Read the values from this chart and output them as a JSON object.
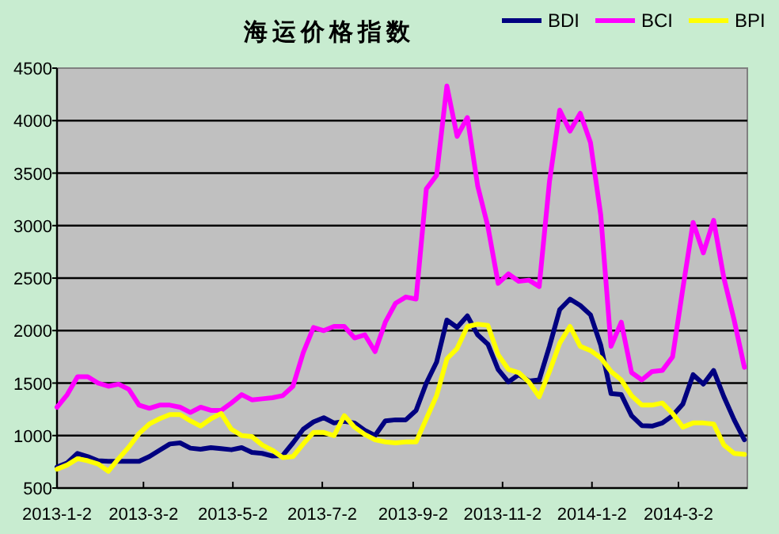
{
  "chart_data": {
    "type": "line",
    "title": "海运价格指数",
    "x": [
      "2013-01-02",
      "2013-01-09",
      "2013-01-16",
      "2013-01-23",
      "2013-01-30",
      "2013-02-06",
      "2013-02-13",
      "2013-02-20",
      "2013-02-27",
      "2013-03-06",
      "2013-03-13",
      "2013-03-20",
      "2013-03-27",
      "2013-04-03",
      "2013-04-10",
      "2013-04-17",
      "2013-04-24",
      "2013-05-01",
      "2013-05-08",
      "2013-05-15",
      "2013-05-22",
      "2013-05-29",
      "2013-06-05",
      "2013-06-12",
      "2013-06-19",
      "2013-06-26",
      "2013-07-03",
      "2013-07-10",
      "2013-07-17",
      "2013-07-24",
      "2013-07-31",
      "2013-08-07",
      "2013-08-14",
      "2013-08-21",
      "2013-08-28",
      "2013-09-04",
      "2013-09-11",
      "2013-09-18",
      "2013-09-25",
      "2013-10-02",
      "2013-10-09",
      "2013-10-16",
      "2013-10-23",
      "2013-10-30",
      "2013-11-06",
      "2013-11-13",
      "2013-11-20",
      "2013-11-27",
      "2013-12-04",
      "2013-12-11",
      "2013-12-18",
      "2013-12-25",
      "2014-01-01",
      "2014-01-08",
      "2014-01-15",
      "2014-01-22",
      "2014-01-29",
      "2014-02-05",
      "2014-02-12",
      "2014-02-19",
      "2014-02-26",
      "2014-03-05",
      "2014-03-12",
      "2014-03-19",
      "2014-03-26",
      "2014-04-02",
      "2014-04-09",
      "2014-04-16"
    ],
    "series": [
      {
        "name": "BDI",
        "color": "#000080",
        "values": [
          700,
          740,
          830,
          800,
          760,
          755,
          754,
          754,
          754,
          800,
          860,
          920,
          930,
          880,
          870,
          885,
          875,
          865,
          885,
          840,
          830,
          805,
          810,
          930,
          1060,
          1130,
          1170,
          1120,
          1135,
          1120,
          1050,
          1000,
          1140,
          1150,
          1150,
          1240,
          1500,
          1700,
          2100,
          2030,
          2140,
          1960,
          1870,
          1630,
          1510,
          1580,
          1520,
          1530,
          1850,
          2200,
          2300,
          2240,
          2150,
          1860,
          1400,
          1390,
          1190,
          1095,
          1090,
          1120,
          1190,
          1300,
          1580,
          1490,
          1620,
          1370,
          1150,
          960
        ]
      },
      {
        "name": "BCI",
        "color": "#ff00ff",
        "values": [
          1270,
          1390,
          1560,
          1560,
          1500,
          1470,
          1490,
          1440,
          1290,
          1260,
          1290,
          1290,
          1270,
          1220,
          1270,
          1240,
          1240,
          1310,
          1390,
          1340,
          1350,
          1360,
          1380,
          1470,
          1790,
          2030,
          2000,
          2040,
          2040,
          1930,
          1960,
          1800,
          2080,
          2260,
          2320,
          2300,
          3350,
          3480,
          4330,
          3850,
          4030,
          3380,
          2990,
          2450,
          2540,
          2470,
          2480,
          2420,
          3420,
          4100,
          3900,
          4070,
          3790,
          3100,
          1850,
          2080,
          1600,
          1530,
          1610,
          1620,
          1750,
          2400,
          3030,
          2740,
          3050,
          2500,
          2100,
          1650
        ]
      },
      {
        "name": "BPI",
        "color": "#ffff00",
        "values": [
          680,
          720,
          780,
          760,
          730,
          660,
          780,
          890,
          1020,
          1110,
          1160,
          1200,
          1200,
          1140,
          1090,
          1160,
          1210,
          1060,
          1000,
          990,
          910,
          860,
          790,
          800,
          920,
          1030,
          1030,
          1000,
          1190,
          1080,
          1010,
          960,
          940,
          930,
          940,
          940,
          1160,
          1380,
          1730,
          1830,
          2040,
          2060,
          2050,
          1770,
          1630,
          1600,
          1510,
          1370,
          1610,
          1880,
          2040,
          1850,
          1810,
          1740,
          1610,
          1530,
          1380,
          1290,
          1290,
          1310,
          1210,
          1080,
          1120,
          1120,
          1110,
          910,
          830,
          820
        ]
      }
    ],
    "xlim": [
      "2013-01-02",
      "2014-04-18"
    ],
    "xticks": [
      {
        "value": "2013-01-02",
        "label": "2013-1-2"
      },
      {
        "value": "2013-03-02",
        "label": "2013-3-2"
      },
      {
        "value": "2013-05-02",
        "label": "2013-5-2"
      },
      {
        "value": "2013-07-02",
        "label": "2013-7-2"
      },
      {
        "value": "2013-09-02",
        "label": "2013-9-2"
      },
      {
        "value": "2013-11-02",
        "label": "2013-11-2"
      },
      {
        "value": "2014-01-02",
        "label": "2014-1-2"
      },
      {
        "value": "2014-03-02",
        "label": "2014-3-2"
      }
    ],
    "ylim": [
      500,
      4500
    ],
    "yticks": [
      500,
      1000,
      1500,
      2000,
      2500,
      3000,
      3500,
      4000,
      4500
    ],
    "grid": "y",
    "legend": "top right"
  }
}
